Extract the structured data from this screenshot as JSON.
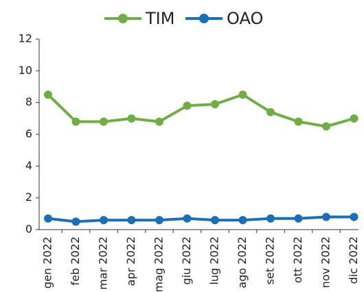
{
  "chart_data": {
    "type": "line",
    "categories": [
      "gen 2022",
      "feb 2022",
      "mar 2022",
      "apr 2022",
      "mag 2022",
      "giu 2022",
      "lug 2022",
      "ago 2022",
      "set 2022",
      "ott 2022",
      "nov 2022",
      "dic 2022"
    ],
    "series": [
      {
        "name": "TIM",
        "color": "#70ad47",
        "values": [
          8.5,
          6.8,
          6.8,
          7.0,
          6.8,
          7.8,
          7.9,
          8.5,
          7.4,
          6.8,
          6.5,
          7.0
        ]
      },
      {
        "name": "OAO",
        "color": "#1a6fb5",
        "values": [
          0.7,
          0.5,
          0.6,
          0.6,
          0.6,
          0.7,
          0.6,
          0.6,
          0.7,
          0.7,
          0.8,
          0.8
        ]
      }
    ],
    "ylim": [
      0,
      12
    ],
    "yticks": [
      0,
      2,
      4,
      6,
      8,
      10,
      12
    ],
    "grid": false,
    "legend": "top"
  }
}
